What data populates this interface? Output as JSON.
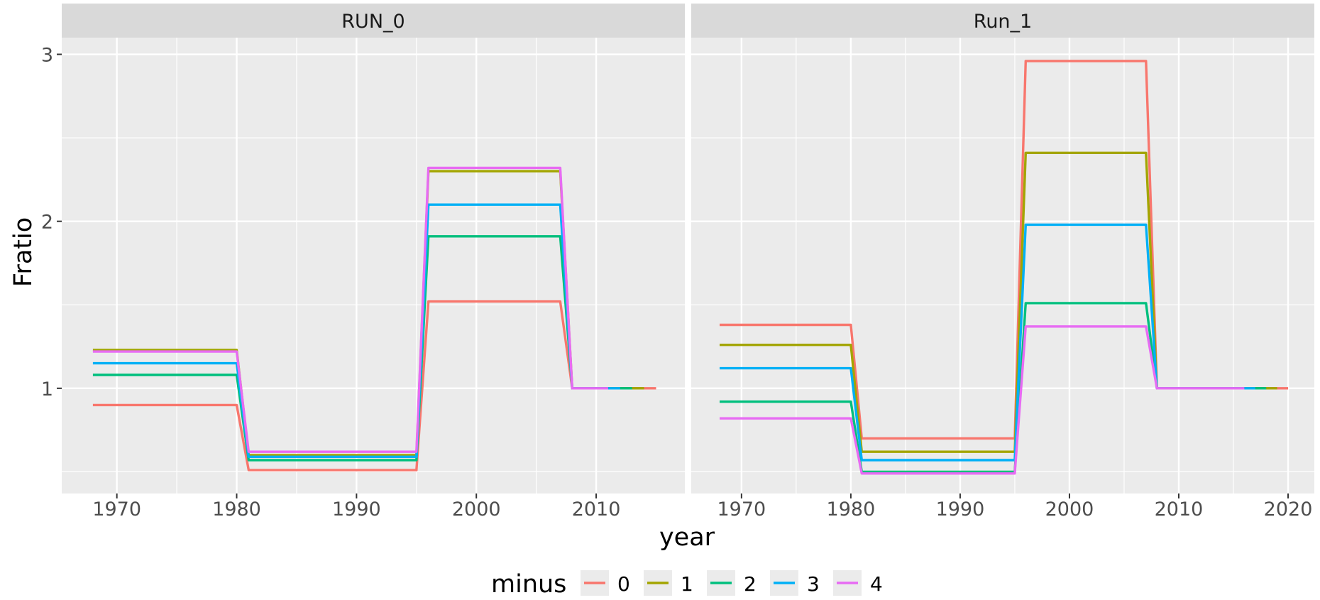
{
  "chart_data": {
    "type": "line",
    "xlabel": "year",
    "ylabel": "Fratio",
    "ylim": [
      0.37,
      3.1
    ],
    "y_ticks": [
      1,
      2,
      3
    ],
    "grid": true,
    "legend": {
      "title": "minus",
      "placement": "bottom",
      "entries": [
        {
          "label": "0",
          "color": "#F8766D"
        },
        {
          "label": "1",
          "color": "#A3A500"
        },
        {
          "label": "2",
          "color": "#00BF7D"
        },
        {
          "label": "3",
          "color": "#00B0F6"
        },
        {
          "label": "4",
          "color": "#E76BF3"
        }
      ]
    },
    "panels": [
      {
        "title": "RUN_0",
        "xlim": [
          1965.4,
          2017.4
        ],
        "x_ticks": [
          1970,
          1980,
          1990,
          2000,
          2010
        ],
        "series": [
          {
            "name": "0",
            "color": "#F8766D",
            "x": [
              1968,
              1980,
              1981,
              1995,
              1996,
              2007,
              2008,
              2015
            ],
            "y": [
              0.9,
              0.9,
              0.51,
              0.51,
              1.52,
              1.52,
              1.0,
              1.0
            ]
          },
          {
            "name": "1",
            "color": "#A3A500",
            "x": [
              1968,
              1980,
              1981,
              1995,
              1996,
              2007,
              2008,
              2014
            ],
            "y": [
              1.23,
              1.23,
              0.6,
              0.6,
              2.3,
              2.3,
              1.0,
              1.0
            ]
          },
          {
            "name": "2",
            "color": "#00BF7D",
            "x": [
              1968,
              1980,
              1981,
              1995,
              1996,
              2007,
              2008,
              2013
            ],
            "y": [
              1.08,
              1.08,
              0.57,
              0.57,
              1.91,
              1.91,
              1.0,
              1.0
            ]
          },
          {
            "name": "3",
            "color": "#00B0F6",
            "x": [
              1968,
              1980,
              1981,
              1995,
              1996,
              2007,
              2008,
              2012
            ],
            "y": [
              1.15,
              1.15,
              0.59,
              0.59,
              2.1,
              2.1,
              1.0,
              1.0
            ]
          },
          {
            "name": "4",
            "color": "#E76BF3",
            "x": [
              1968,
              1980,
              1981,
              1995,
              1996,
              2007,
              2008,
              2011
            ],
            "y": [
              1.22,
              1.22,
              0.62,
              0.62,
              2.32,
              2.32,
              1.0,
              1.0
            ]
          }
        ]
      },
      {
        "title": "Run_1",
        "xlim": [
          1965.4,
          2022.4
        ],
        "x_ticks": [
          1970,
          1980,
          1990,
          2000,
          2010,
          2020
        ],
        "series": [
          {
            "name": "0",
            "color": "#F8766D",
            "x": [
              1968,
              1980,
              1981,
              1995,
              1996,
              2007,
              2008,
              2020
            ],
            "y": [
              1.38,
              1.38,
              0.7,
              0.7,
              2.96,
              2.96,
              1.0,
              1.0
            ]
          },
          {
            "name": "1",
            "color": "#A3A500",
            "x": [
              1968,
              1980,
              1981,
              1995,
              1996,
              2007,
              2008,
              2019
            ],
            "y": [
              1.26,
              1.26,
              0.62,
              0.62,
              2.41,
              2.41,
              1.0,
              1.0
            ]
          },
          {
            "name": "2",
            "color": "#00BF7D",
            "x": [
              1968,
              1980,
              1981,
              1995,
              1996,
              2007,
              2008,
              2018
            ],
            "y": [
              0.92,
              0.92,
              0.5,
              0.5,
              1.51,
              1.51,
              1.0,
              1.0
            ]
          },
          {
            "name": "3",
            "color": "#00B0F6",
            "x": [
              1968,
              1980,
              1981,
              1995,
              1996,
              2007,
              2008,
              2017
            ],
            "y": [
              1.12,
              1.12,
              0.57,
              0.57,
              1.98,
              1.98,
              1.0,
              1.0
            ]
          },
          {
            "name": "4",
            "color": "#E76BF3",
            "x": [
              1968,
              1980,
              1981,
              1995,
              1996,
              2007,
              2008,
              2016
            ],
            "y": [
              0.82,
              0.82,
              0.49,
              0.49,
              1.37,
              1.37,
              1.0,
              1.0
            ]
          }
        ]
      }
    ]
  }
}
